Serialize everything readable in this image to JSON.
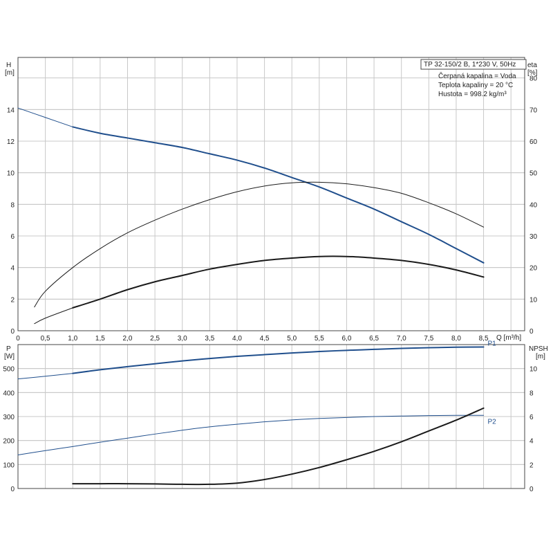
{
  "colors": {
    "blue": "#1f4e8c",
    "black": "#1a1a1a",
    "grid": "#c8c8c8",
    "frame": "#444444"
  },
  "info": {
    "lines": [
      "TP 32-150/2 B, 1*230 V, 50Hz",
      "Čerpaná kapalina = Voda",
      "Teplota kapaliny = 20 °C",
      "Hustota = 998.2 kg/m³"
    ]
  },
  "chart_data": [
    {
      "type": "line",
      "panel": "top",
      "xlabel": "Q [m³/h]",
      "xlim": [
        0,
        9.25
      ],
      "xticks": [
        0,
        0.5,
        1.0,
        1.5,
        2.0,
        2.5,
        3.0,
        3.5,
        4.0,
        4.5,
        5.0,
        5.5,
        6.0,
        6.5,
        7.0,
        7.5,
        8.0,
        8.5
      ],
      "xtick_labels": [
        "0",
        "0,5",
        "1,0",
        "1,5",
        "2,0",
        "2,5",
        "3,0",
        "3,5",
        "4,0",
        "4,5",
        "5,0",
        "5,5",
        "6,0",
        "6,5",
        "7,0",
        "7,5",
        "8,0",
        "8,5"
      ],
      "y_left": {
        "label_line1": "H",
        "label_line2": "[m]",
        "lim": [
          0,
          17.3
        ],
        "ticks": [
          0,
          2,
          4,
          6,
          8,
          10,
          12,
          14
        ]
      },
      "y_right": {
        "label_line1": "eta",
        "label_line2": "[%]",
        "lim": [
          0,
          86.5
        ],
        "ticks": [
          0,
          10,
          20,
          30,
          40,
          50,
          60,
          70,
          80
        ]
      },
      "grid": true,
      "series": [
        {
          "axis": "left",
          "color": "blue",
          "width": 1,
          "x": [
            0,
            0.5,
            1.0
          ],
          "y": [
            14.1,
            13.5,
            12.9
          ]
        },
        {
          "axis": "left",
          "color": "blue",
          "width": 2,
          "x": [
            1.0,
            1.5,
            2.0,
            2.5,
            3.0,
            3.5,
            4.0,
            4.5,
            5.0,
            5.5,
            6.0,
            6.5,
            7.0,
            7.5,
            8.0,
            8.5
          ],
          "y": [
            12.9,
            12.5,
            12.2,
            11.9,
            11.6,
            11.2,
            10.8,
            10.3,
            9.7,
            9.1,
            8.4,
            7.7,
            6.9,
            6.1,
            5.2,
            4.3
          ]
        },
        {
          "axis": "right",
          "color": "black",
          "width": 1,
          "x": [
            0.3,
            0.5,
            1.0,
            1.5,
            2.0,
            2.5,
            3.0,
            3.5,
            4.0,
            4.5,
            5.0,
            5.5,
            6.0,
            6.5,
            7.0,
            7.5,
            8.0,
            8.5
          ],
          "y": [
            7.5,
            12.5,
            20,
            26,
            31,
            35,
            38.5,
            41.5,
            44,
            45.8,
            46.8,
            47,
            46.5,
            45.3,
            43.5,
            40.5,
            37,
            32.8
          ]
        },
        {
          "axis": "left",
          "color": "black",
          "width": 1,
          "x": [
            0.3,
            0.5,
            1.0
          ],
          "y": [
            0.45,
            0.8,
            1.45
          ]
        },
        {
          "axis": "left",
          "color": "black",
          "width": 2,
          "x": [
            1.0,
            1.5,
            2.0,
            2.5,
            3.0,
            3.5,
            4.0,
            4.5,
            5.0,
            5.5,
            6.0,
            6.5,
            7.0,
            7.5,
            8.0,
            8.5
          ],
          "y": [
            1.45,
            2.0,
            2.6,
            3.1,
            3.5,
            3.9,
            4.2,
            4.45,
            4.6,
            4.7,
            4.7,
            4.6,
            4.45,
            4.2,
            3.85,
            3.4
          ]
        }
      ]
    },
    {
      "type": "line",
      "panel": "bottom",
      "xlim": [
        0,
        9.25
      ],
      "xticks": [
        0,
        0.5,
        1.0,
        1.5,
        2.0,
        2.5,
        3.0,
        3.5,
        4.0,
        4.5,
        5.0,
        5.5,
        6.0,
        6.5,
        7.0,
        7.5,
        8.0,
        8.5
      ],
      "y_left": {
        "label_line1": "P",
        "label_line2": "[W]",
        "lim": [
          0,
          600
        ],
        "ticks": [
          0,
          100,
          200,
          300,
          400,
          500
        ]
      },
      "y_right": {
        "label_line1": "NPSH",
        "label_line2": "[m]",
        "lim": [
          0,
          12
        ],
        "ticks": [
          0,
          2,
          4,
          6,
          8,
          10
        ]
      },
      "grid": true,
      "series": [
        {
          "name": "P1",
          "axis": "left",
          "color": "blue",
          "width": 1,
          "x": [
            0,
            0.5,
            1.0
          ],
          "y": [
            457,
            468,
            480
          ]
        },
        {
          "name": "P1",
          "axis": "left",
          "color": "blue",
          "width": 2,
          "x": [
            1.0,
            1.5,
            2.0,
            2.5,
            3.0,
            3.5,
            4.0,
            4.5,
            5.0,
            5.5,
            6.0,
            6.5,
            7.0,
            7.5,
            8.0,
            8.5
          ],
          "y": [
            480,
            495,
            508,
            520,
            532,
            542,
            551,
            558,
            565,
            571,
            576,
            580,
            584,
            587,
            589,
            590
          ]
        },
        {
          "name": "P2",
          "axis": "left",
          "color": "blue",
          "width": 1,
          "x": [
            0,
            0.5,
            1.0,
            1.5,
            2.0,
            2.5,
            3.0,
            3.5,
            4.0,
            4.5,
            5.0,
            5.5,
            6.0,
            6.5,
            7.0,
            7.5,
            8.0,
            8.5
          ],
          "y": [
            140,
            158,
            175,
            193,
            210,
            227,
            243,
            257,
            268,
            278,
            286,
            292,
            296,
            300,
            302,
            304,
            305,
            305
          ]
        },
        {
          "axis": "right",
          "color": "black",
          "width": 2,
          "x": [
            1.0,
            1.5,
            2.0,
            2.5,
            3.0,
            3.5,
            4.0,
            4.5,
            5.0,
            5.5,
            6.0,
            6.5,
            7.0,
            7.5,
            8.0,
            8.5
          ],
          "y": [
            0.4,
            0.4,
            0.4,
            0.38,
            0.35,
            0.35,
            0.45,
            0.75,
            1.2,
            1.75,
            2.4,
            3.1,
            3.9,
            4.8,
            5.7,
            6.7
          ]
        }
      ],
      "labels": [
        {
          "text": "P1",
          "x": 8.55,
          "y": 590,
          "axis": "left"
        },
        {
          "text": "P2",
          "x": 8.55,
          "y": 305,
          "axis": "left"
        }
      ]
    }
  ]
}
